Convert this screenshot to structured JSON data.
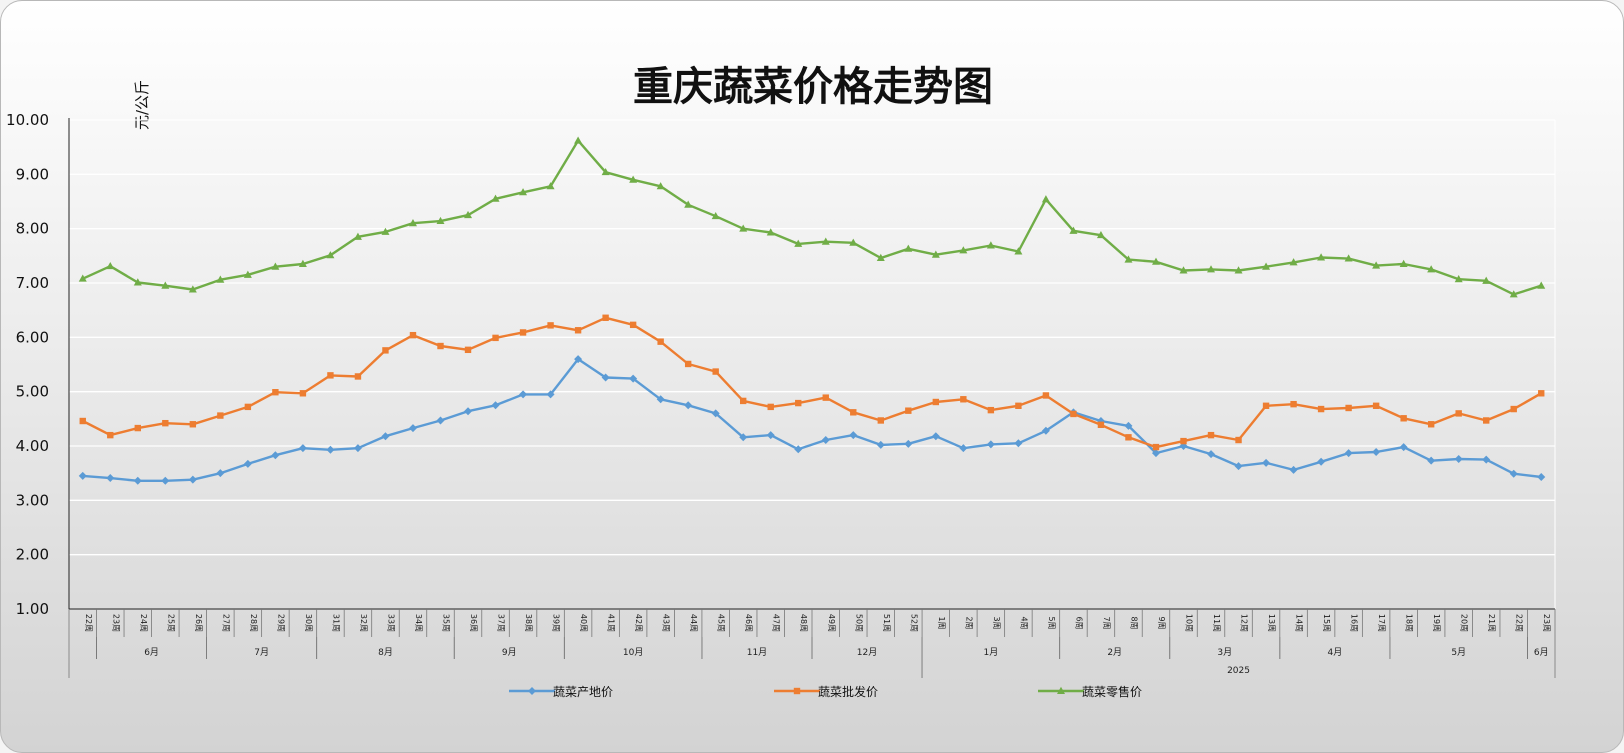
{
  "chart_data": {
    "type": "line",
    "title": "重庆蔬菜价格走势图",
    "ylabel": "元/公斤",
    "ylim": [
      1,
      10
    ],
    "yticks": [
      "1.00",
      "2.00",
      "3.00",
      "4.00",
      "5.00",
      "6.00",
      "7.00",
      "8.00",
      "9.00",
      "10.00"
    ],
    "grid": true,
    "legend_position": "bottom",
    "categories": [
      "22周",
      "23周",
      "24周",
      "25周",
      "26周",
      "27周",
      "28周",
      "29周",
      "30周",
      "31周",
      "32周",
      "33周",
      "34周",
      "35周",
      "36周",
      "37周",
      "38周",
      "39周",
      "40周",
      "41周",
      "42周",
      "43周",
      "44周",
      "45周",
      "46周",
      "47周",
      "48周",
      "49周",
      "50周",
      "51周",
      "52周",
      "1周",
      "2周",
      "3周",
      "4周",
      "5周",
      "6周",
      "7周",
      "8周",
      "9周",
      "10周",
      "11周",
      "12周",
      "13周",
      "14周",
      "15周",
      "16周",
      "17周",
      "18周",
      "19周",
      "20周",
      "21周",
      "22周",
      "23周"
    ],
    "months": [
      {
        "label": "",
        "start": 0,
        "count": 1
      },
      {
        "label": "6月",
        "start": 1,
        "count": 4
      },
      {
        "label": "7月",
        "start": 5,
        "count": 4
      },
      {
        "label": "8月",
        "start": 9,
        "count": 5
      },
      {
        "label": "9月",
        "start": 14,
        "count": 4
      },
      {
        "label": "10月",
        "start": 18,
        "count": 5
      },
      {
        "label": "11月",
        "start": 23,
        "count": 4
      },
      {
        "label": "12月",
        "start": 27,
        "count": 4
      },
      {
        "label": "1月",
        "start": 31,
        "count": 5
      },
      {
        "label": "2月",
        "start": 36,
        "count": 4
      },
      {
        "label": "3月",
        "start": 40,
        "count": 4
      },
      {
        "label": "4月",
        "start": 44,
        "count": 4
      },
      {
        "label": "5月",
        "start": 48,
        "count": 5
      },
      {
        "label": "6月",
        "start": 53,
        "count": 1
      }
    ],
    "years": [
      {
        "label": "",
        "start": 0,
        "count": 31
      },
      {
        "label": "2025",
        "start": 31,
        "count": 23
      }
    ],
    "series": [
      {
        "name": "蔬菜产地价",
        "color": "#5b9bd5",
        "marker": "diamond",
        "values": [
          3.45,
          3.41,
          3.36,
          3.36,
          3.38,
          3.5,
          3.67,
          3.83,
          3.96,
          3.93,
          3.96,
          4.18,
          4.33,
          4.47,
          4.64,
          4.75,
          4.95,
          4.95,
          5.6,
          5.26,
          5.24,
          4.86,
          4.75,
          4.6,
          4.16,
          4.2,
          3.94,
          4.11,
          4.2,
          4.02,
          4.04,
          4.18,
          3.96,
          4.03,
          4.05,
          4.28,
          4.62,
          4.46,
          4.37,
          3.87,
          4.0,
          3.85,
          3.63,
          3.69,
          3.56,
          3.71,
          3.87,
          3.89,
          3.98,
          3.73,
          3.76,
          3.75,
          3.49,
          3.43
        ]
      },
      {
        "name": "蔬菜批发价",
        "color": "#ed7d31",
        "marker": "square",
        "values": [
          4.46,
          4.2,
          4.33,
          4.42,
          4.4,
          4.56,
          4.72,
          4.99,
          4.97,
          5.3,
          5.28,
          5.76,
          6.04,
          5.84,
          5.77,
          5.99,
          6.09,
          6.22,
          6.13,
          6.36,
          6.23,
          5.92,
          5.51,
          5.37,
          4.83,
          4.72,
          4.79,
          4.89,
          4.62,
          4.47,
          4.65,
          4.81,
          4.86,
          4.66,
          4.74,
          4.93,
          4.59,
          4.39,
          4.16,
          3.98,
          4.09,
          4.2,
          4.11,
          4.74,
          4.77,
          4.68,
          4.7,
          4.74,
          4.51,
          4.4,
          4.6,
          4.47,
          4.68,
          4.97
        ]
      },
      {
        "name": "蔬菜零售价",
        "color": "#70ad47",
        "marker": "triangle",
        "values": [
          7.08,
          7.31,
          7.01,
          6.95,
          6.88,
          7.06,
          7.15,
          7.3,
          7.35,
          7.51,
          7.85,
          7.94,
          8.1,
          8.14,
          8.25,
          8.55,
          8.67,
          8.78,
          9.62,
          9.04,
          8.9,
          8.78,
          8.44,
          8.23,
          8.0,
          7.93,
          7.72,
          7.76,
          7.74,
          7.46,
          7.63,
          7.52,
          7.6,
          7.69,
          7.58,
          8.54,
          7.96,
          7.88,
          7.43,
          7.39,
          7.23,
          7.25,
          7.23,
          7.3,
          7.38,
          7.47,
          7.45,
          7.32,
          7.35,
          7.25,
          7.07,
          7.04,
          6.79,
          6.95
        ]
      }
    ]
  }
}
